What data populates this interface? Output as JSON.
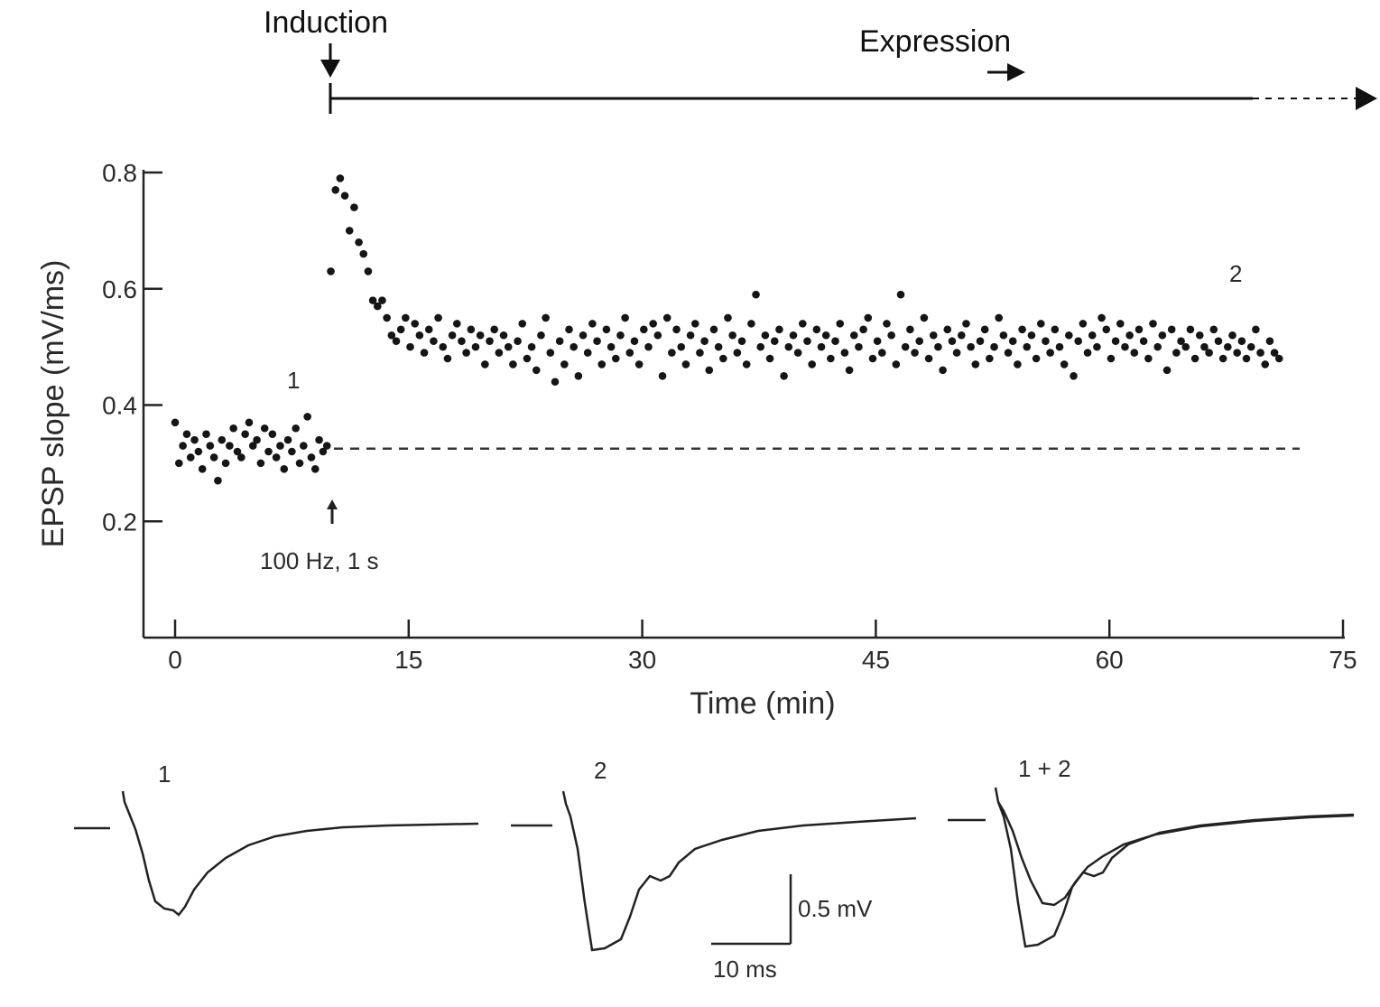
{
  "top": {
    "induction_label": "Induction",
    "expression_label": "Expression"
  },
  "chart_data": {
    "type": "scatter",
    "xlabel": "Time (min)",
    "ylabel": "EPSP slope (mV/ms)",
    "xlim": [
      0,
      75
    ],
    "ylim": [
      0.0,
      0.8
    ],
    "x_ticks": [
      0,
      15,
      30,
      45,
      60,
      75
    ],
    "y_ticks": [
      0.2,
      0.4,
      0.6,
      0.8
    ],
    "baseline_dashed_y": 0.325,
    "stimulus_label": "100 Hz, 1 s",
    "stimulus_x": 10,
    "marker_1": "1",
    "marker_2": "2",
    "series": [
      {
        "x": [
          0.0,
          0.25,
          0.5,
          0.75,
          1.0,
          1.25,
          1.5,
          1.75,
          2.0,
          2.25,
          2.5,
          2.75,
          3.0,
          3.25,
          3.5,
          3.75,
          4.0,
          4.25,
          4.5,
          4.75,
          5.0,
          5.25,
          5.5,
          5.75,
          6.0,
          6.25,
          6.5,
          6.75,
          7.0,
          7.25,
          7.5,
          7.75,
          8.0,
          8.25,
          8.5,
          8.75,
          9.0,
          9.25,
          9.5,
          9.75,
          10.0,
          10.3,
          10.6,
          10.9,
          11.2,
          11.5,
          11.8,
          12.1,
          12.4,
          12.7,
          13.0,
          13.3,
          13.6,
          13.9,
          14.2,
          14.5,
          14.8,
          15.1,
          15.4,
          15.7,
          16.0,
          16.3,
          16.6,
          16.9,
          17.2,
          17.5,
          17.8,
          18.1,
          18.4,
          18.7,
          19.0,
          19.3,
          19.6,
          19.9,
          20.2,
          20.5,
          20.8,
          21.1,
          21.4,
          21.7,
          22.0,
          22.3,
          22.6,
          22.9,
          23.2,
          23.5,
          23.8,
          24.1,
          24.4,
          24.7,
          25.0,
          25.3,
          25.6,
          25.9,
          26.2,
          26.5,
          26.8,
          27.1,
          27.4,
          27.7,
          28.0,
          28.3,
          28.6,
          28.9,
          29.2,
          29.5,
          29.8,
          30.1,
          30.4,
          30.7,
          31.0,
          31.3,
          31.6,
          31.9,
          32.2,
          32.5,
          32.8,
          33.1,
          33.4,
          33.7,
          34.0,
          34.3,
          34.6,
          34.9,
          35.2,
          35.5,
          35.8,
          36.1,
          36.4,
          36.7,
          37.0,
          37.3,
          37.6,
          37.9,
          38.2,
          38.5,
          38.8,
          39.1,
          39.4,
          39.7,
          40.0,
          40.3,
          40.6,
          40.9,
          41.2,
          41.5,
          41.8,
          42.1,
          42.4,
          42.7,
          43.0,
          43.3,
          43.6,
          43.9,
          44.2,
          44.5,
          44.8,
          45.1,
          45.4,
          45.7,
          46.0,
          46.3,
          46.6,
          46.9,
          47.2,
          47.5,
          47.8,
          48.1,
          48.4,
          48.7,
          49.0,
          49.3,
          49.6,
          49.9,
          50.2,
          50.5,
          50.8,
          51.1,
          51.4,
          51.7,
          52.0,
          52.3,
          52.6,
          52.9,
          53.2,
          53.5,
          53.8,
          54.1,
          54.4,
          54.7,
          55.0,
          55.3,
          55.6,
          55.9,
          56.2,
          56.5,
          56.8,
          57.1,
          57.4,
          57.7,
          58.0,
          58.3,
          58.6,
          58.9,
          59.2,
          59.5,
          59.8,
          60.1,
          60.4,
          60.7,
          61.0,
          61.3,
          61.6,
          61.9,
          62.2,
          62.5,
          62.8,
          63.1,
          63.4,
          63.7,
          64.0,
          64.3,
          64.6,
          64.9,
          65.2,
          65.5,
          65.8,
          66.1,
          66.4,
          66.7,
          67.0,
          67.3,
          67.6,
          67.9,
          68.2,
          68.5,
          68.8,
          69.1,
          69.4,
          69.7,
          70.0,
          70.3,
          70.6,
          70.9
        ],
        "y": [
          0.37,
          0.3,
          0.33,
          0.35,
          0.31,
          0.34,
          0.32,
          0.29,
          0.35,
          0.33,
          0.31,
          0.27,
          0.34,
          0.3,
          0.33,
          0.36,
          0.32,
          0.31,
          0.35,
          0.37,
          0.33,
          0.34,
          0.3,
          0.36,
          0.32,
          0.35,
          0.31,
          0.33,
          0.29,
          0.34,
          0.32,
          0.36,
          0.3,
          0.33,
          0.38,
          0.31,
          0.29,
          0.34,
          0.32,
          0.33,
          0.63,
          0.77,
          0.79,
          0.76,
          0.7,
          0.74,
          0.68,
          0.66,
          0.63,
          0.58,
          0.57,
          0.58,
          0.55,
          0.52,
          0.51,
          0.53,
          0.55,
          0.5,
          0.54,
          0.52,
          0.49,
          0.53,
          0.51,
          0.55,
          0.5,
          0.48,
          0.52,
          0.54,
          0.51,
          0.49,
          0.53,
          0.5,
          0.52,
          0.47,
          0.51,
          0.53,
          0.49,
          0.52,
          0.5,
          0.47,
          0.51,
          0.54,
          0.48,
          0.5,
          0.46,
          0.52,
          0.55,
          0.49,
          0.44,
          0.51,
          0.47,
          0.53,
          0.5,
          0.45,
          0.52,
          0.49,
          0.54,
          0.51,
          0.47,
          0.53,
          0.5,
          0.48,
          0.52,
          0.55,
          0.49,
          0.51,
          0.47,
          0.53,
          0.5,
          0.54,
          0.52,
          0.45,
          0.55,
          0.49,
          0.53,
          0.5,
          0.47,
          0.52,
          0.54,
          0.49,
          0.51,
          0.46,
          0.53,
          0.5,
          0.48,
          0.55,
          0.52,
          0.49,
          0.51,
          0.47,
          0.54,
          0.59,
          0.5,
          0.52,
          0.48,
          0.51,
          0.53,
          0.45,
          0.5,
          0.52,
          0.49,
          0.54,
          0.51,
          0.47,
          0.53,
          0.5,
          0.52,
          0.48,
          0.51,
          0.54,
          0.49,
          0.46,
          0.52,
          0.5,
          0.53,
          0.55,
          0.48,
          0.51,
          0.49,
          0.54,
          0.52,
          0.47,
          0.59,
          0.5,
          0.53,
          0.49,
          0.51,
          0.55,
          0.48,
          0.52,
          0.5,
          0.46,
          0.53,
          0.51,
          0.49,
          0.52,
          0.54,
          0.5,
          0.47,
          0.51,
          0.53,
          0.48,
          0.5,
          0.55,
          0.52,
          0.49,
          0.51,
          0.47,
          0.53,
          0.5,
          0.52,
          0.48,
          0.54,
          0.51,
          0.49,
          0.53,
          0.5,
          0.47,
          0.52,
          0.45,
          0.51,
          0.54,
          0.49,
          0.52,
          0.5,
          0.55,
          0.53,
          0.48,
          0.51,
          0.54,
          0.5,
          0.52,
          0.49,
          0.53,
          0.51,
          0.48,
          0.54,
          0.5,
          0.52,
          0.46,
          0.53,
          0.49,
          0.51,
          0.5,
          0.53,
          0.48,
          0.52,
          0.5,
          0.49,
          0.53,
          0.51,
          0.48,
          0.5,
          0.52,
          0.49,
          0.51,
          0.48,
          0.5,
          0.53,
          0.49,
          0.47,
          0.51,
          0.49,
          0.48
        ]
      }
    ]
  },
  "traces": {
    "labels": [
      "1",
      "2",
      "1 + 2"
    ],
    "scale_y_label": "0.5 mV",
    "scale_x_label": "10 ms"
  }
}
